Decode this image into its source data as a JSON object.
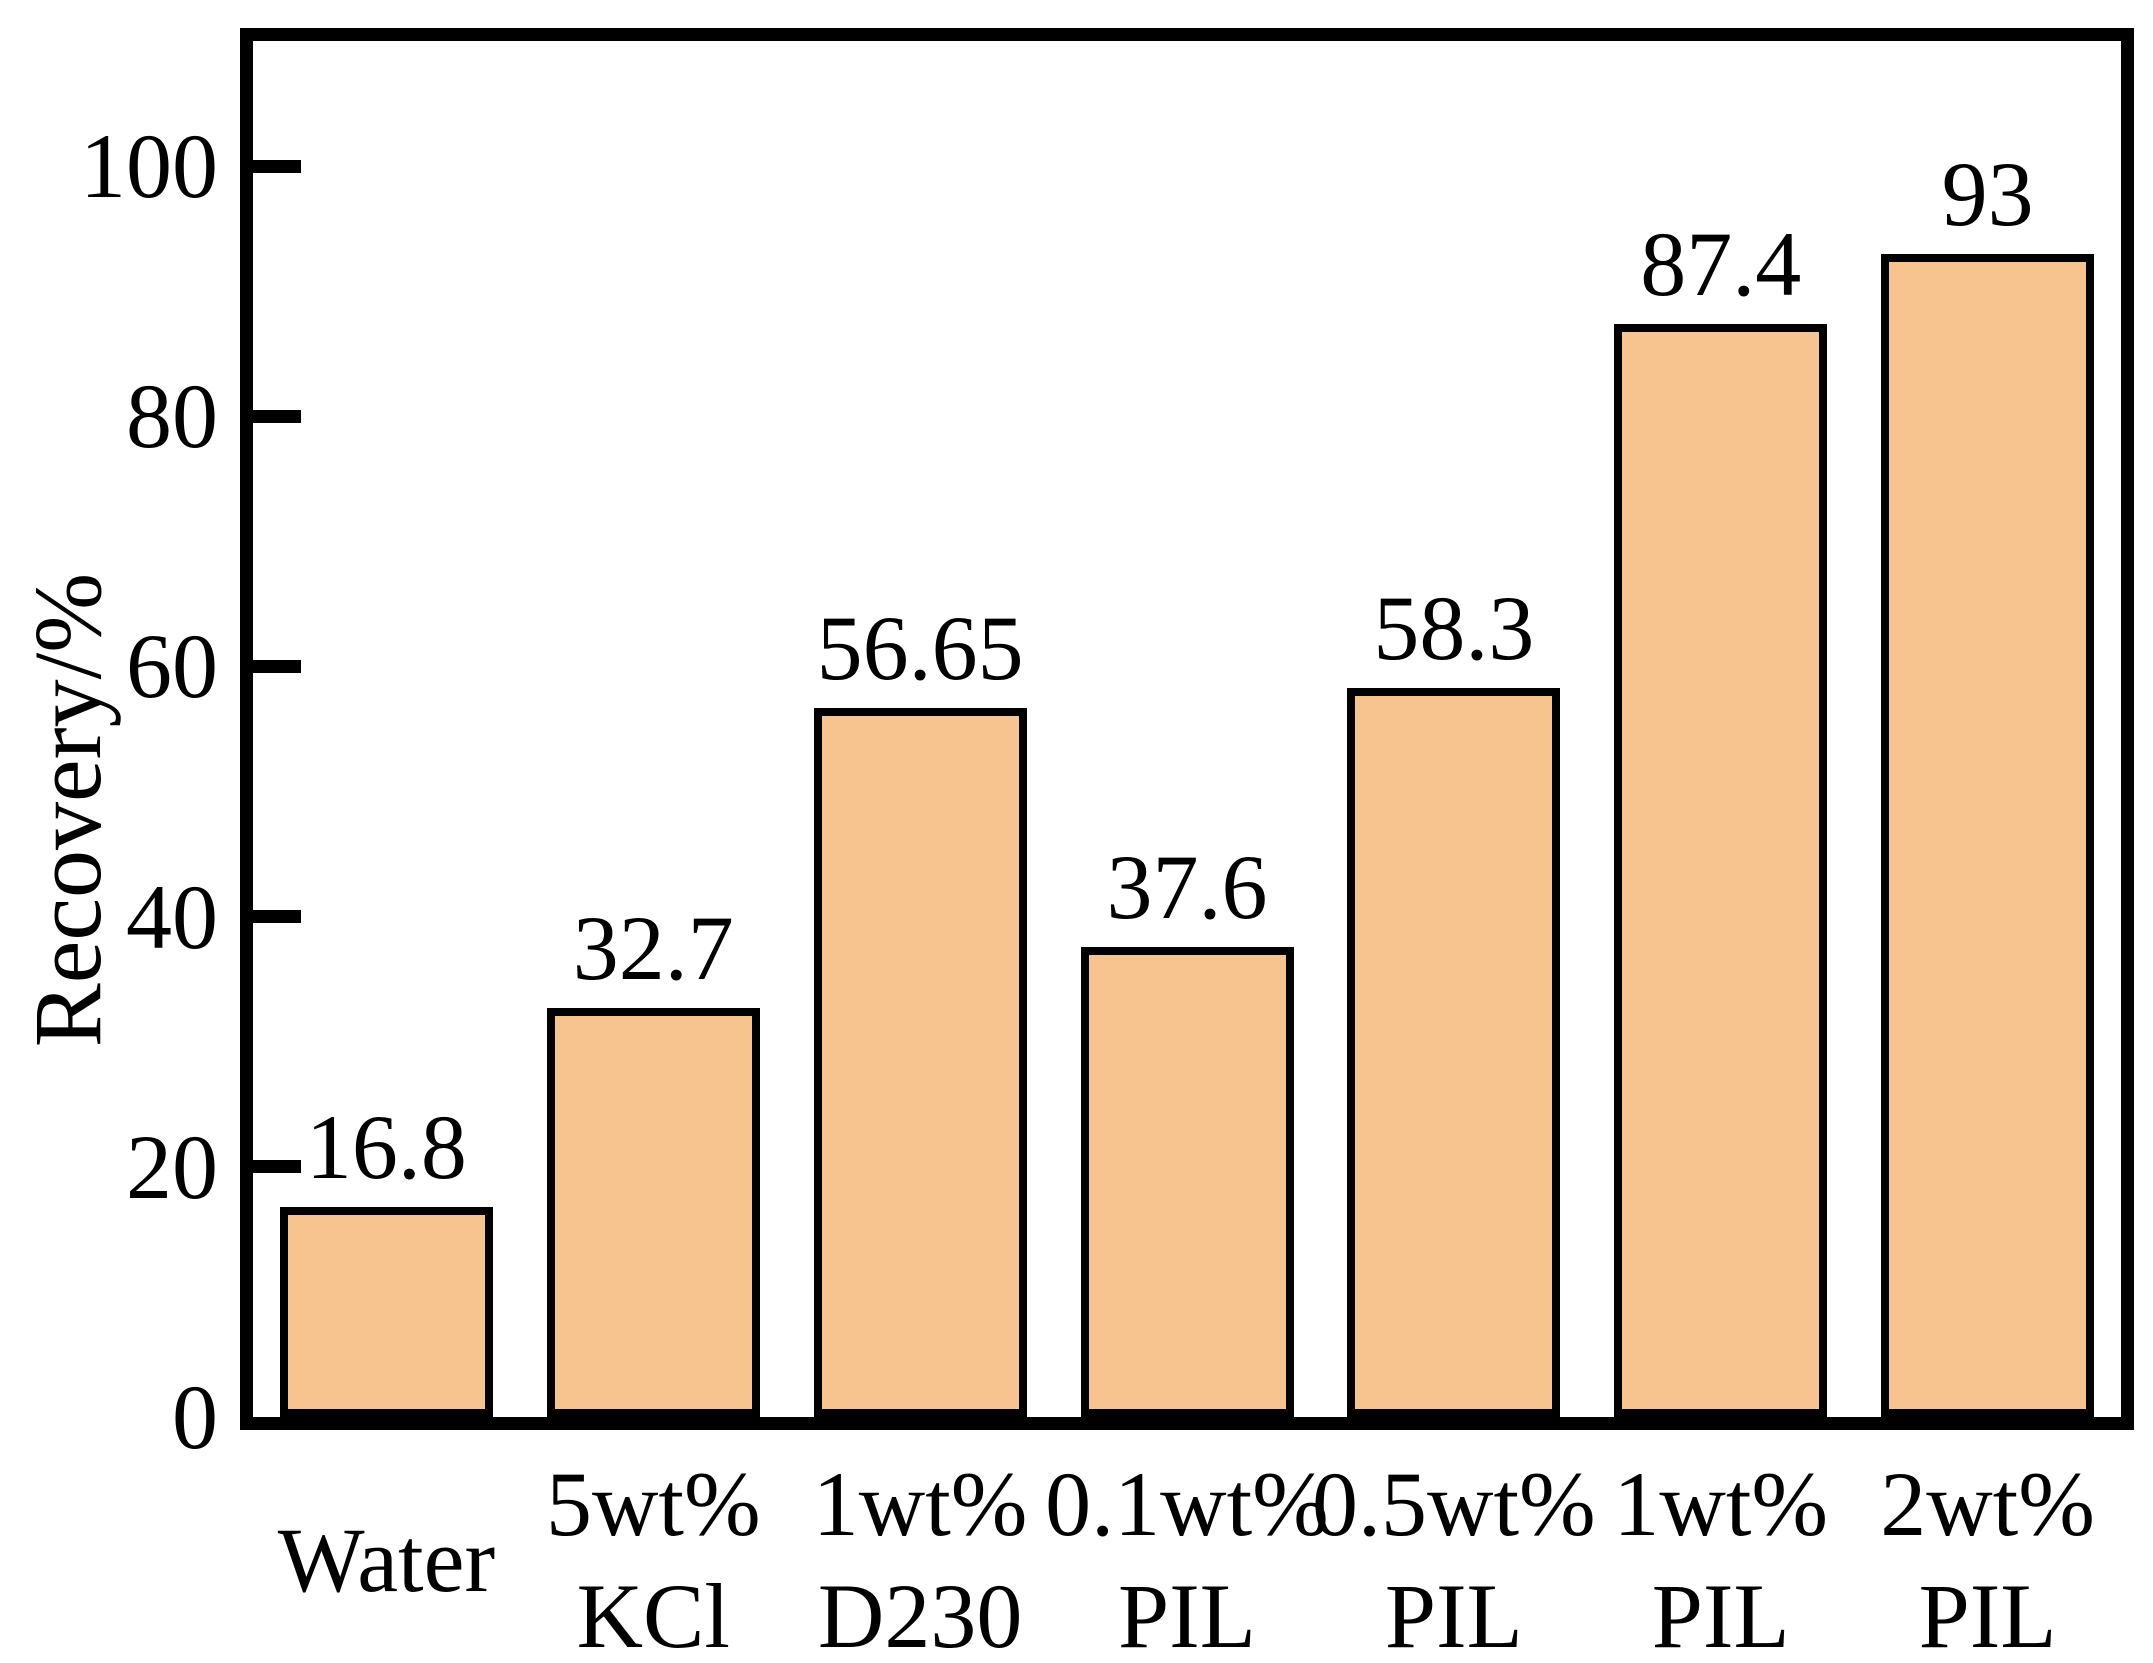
{
  "chart_data": {
    "type": "bar",
    "title": "",
    "xlabel": "",
    "ylabel": "Recovery/%",
    "ylim": [
      0,
      110
    ],
    "yticks": [
      0,
      20,
      40,
      60,
      80,
      100
    ],
    "grid": false,
    "legend": null,
    "background_color": "#ffffff",
    "bar_fill_color": "#F7C38F",
    "bar_border_color": "#000000",
    "axis_color": "#000000",
    "categories": [
      "Water",
      "5wt% KCl",
      "1wt% D230",
      "0.1wt% PIL",
      "0.5wt% PIL",
      "1wt% PIL",
      "2wt% PIL"
    ],
    "category_lines": [
      [
        "Water"
      ],
      [
        "5wt%",
        "KCl"
      ],
      [
        "1wt%",
        "D230"
      ],
      [
        "0.1wt%",
        "PIL"
      ],
      [
        "0.5wt%",
        "PIL"
      ],
      [
        "1wt%",
        "PIL"
      ],
      [
        "2wt%",
        "PIL"
      ]
    ],
    "values": [
      16.8,
      32.7,
      56.65,
      37.6,
      58.3,
      87.4,
      93
    ],
    "value_labels": [
      "16.8",
      "32.7",
      "56.65",
      "37.6",
      "58.3",
      "87.4",
      "93"
    ]
  }
}
